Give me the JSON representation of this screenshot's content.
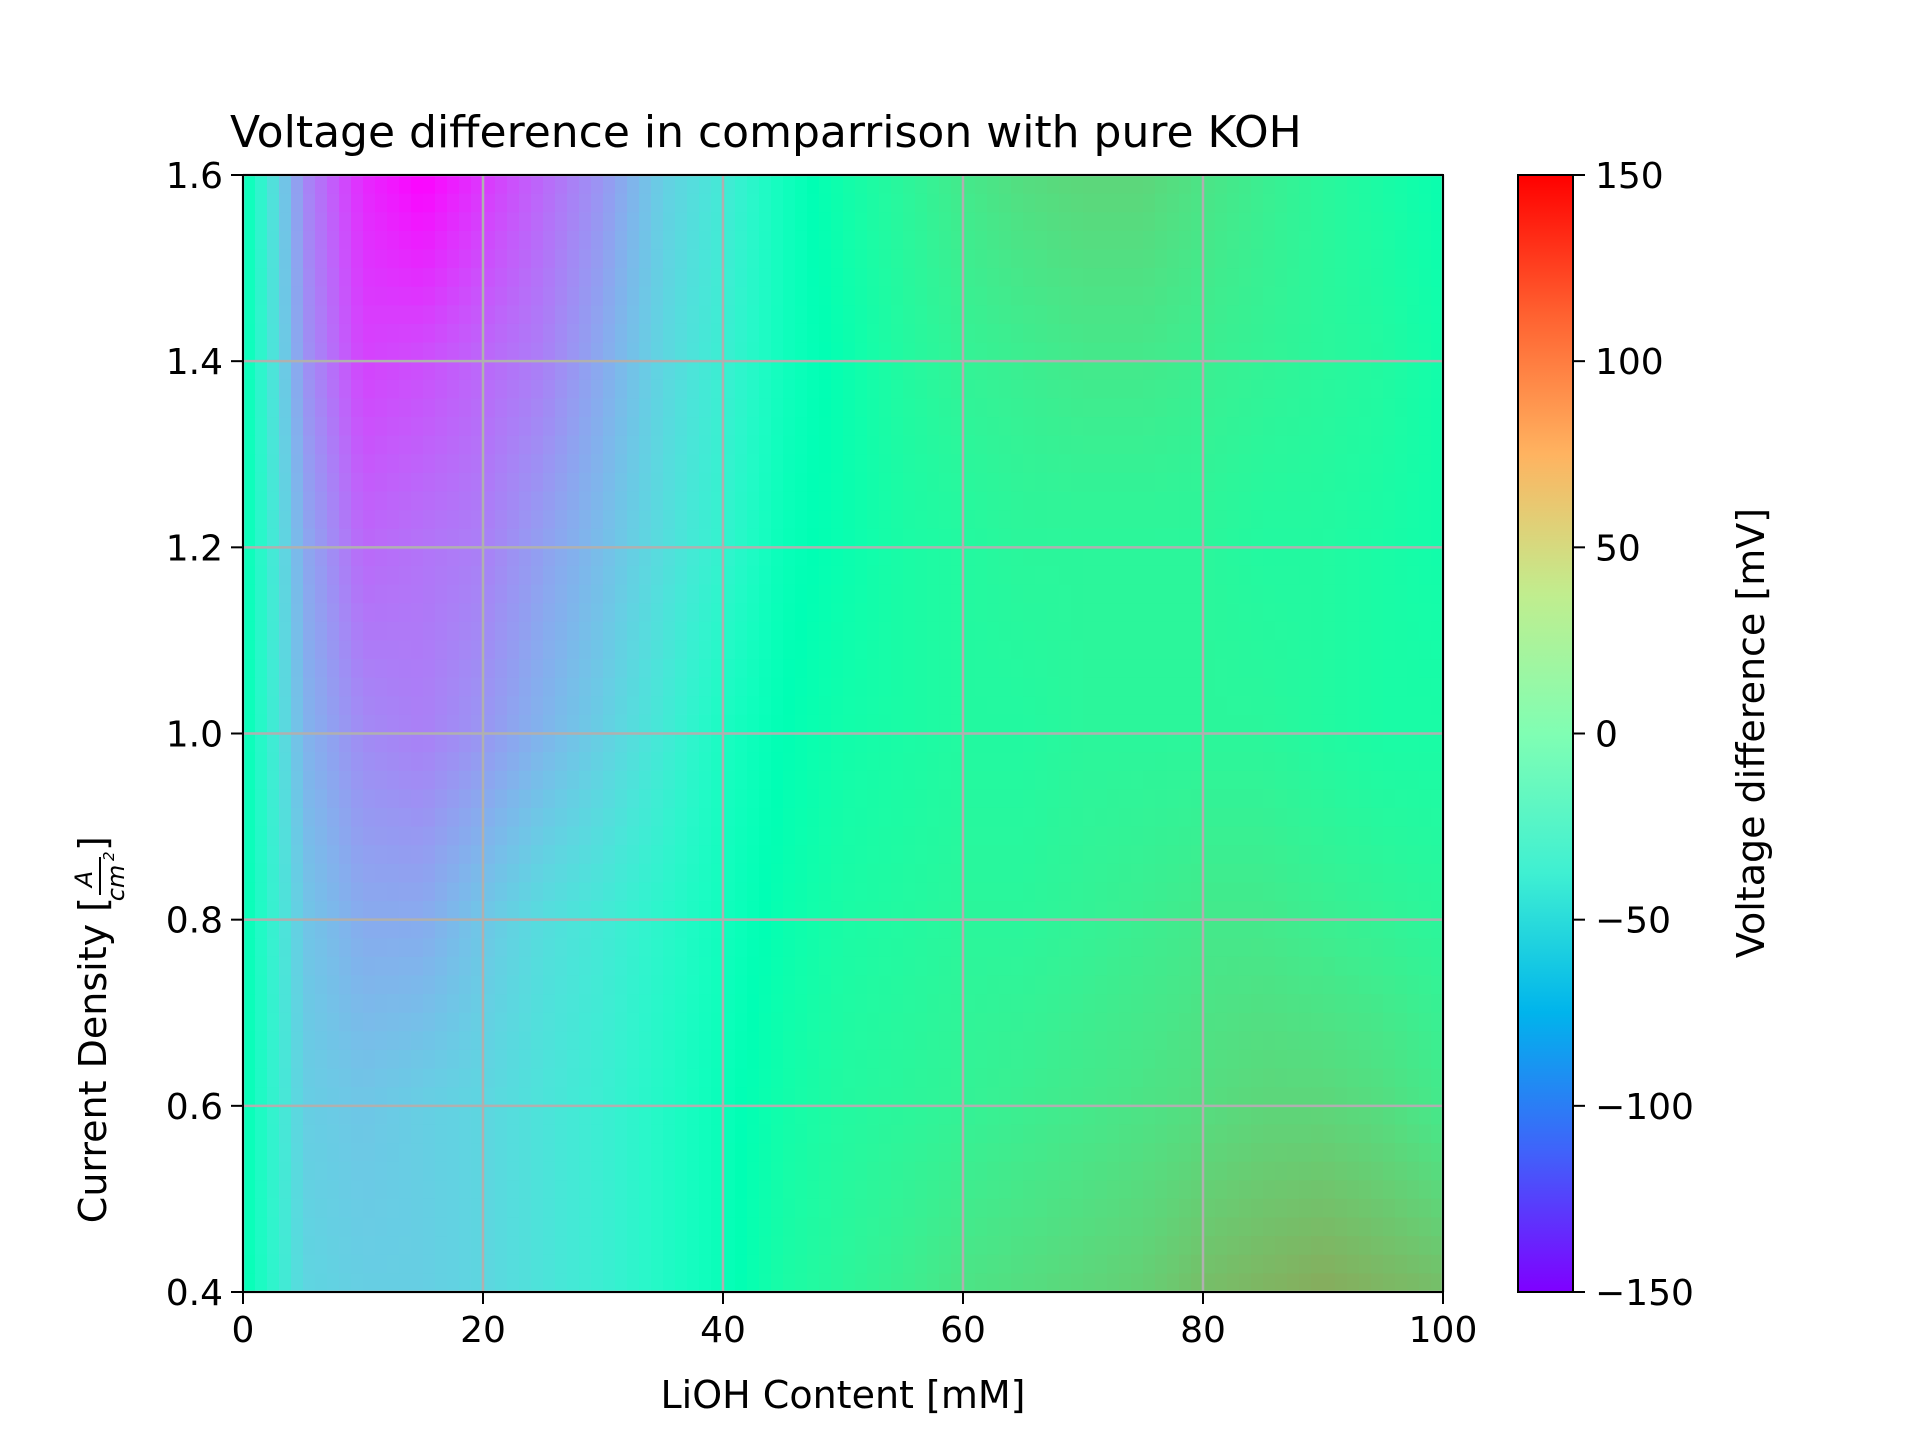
{
  "chart_data": {
    "type": "heatmap",
    "title": "Voltage difference in comparrison with pure KOH",
    "xlabel": "LiOH Content [mM]",
    "ylabel": {
      "prefix": "Current Density [",
      "numerator": "A",
      "denominator": "cm",
      "exponent": "2",
      "suffix": "]"
    },
    "colorbar_label": "Voltage difference [mV]",
    "xlim": [
      0,
      100
    ],
    "ylim": [
      0.4,
      1.6
    ],
    "clim": [
      -150,
      150
    ],
    "colormap": "rainbow",
    "grid": true,
    "x_ticks": [
      {
        "value": 0,
        "label": "0"
      },
      {
        "value": 20,
        "label": "20"
      },
      {
        "value": 40,
        "label": "40"
      },
      {
        "value": 60,
        "label": "60"
      },
      {
        "value": 80,
        "label": "80"
      },
      {
        "value": 100,
        "label": "100"
      }
    ],
    "y_ticks": [
      {
        "value": 0.4,
        "label": "0.4"
      },
      {
        "value": 0.6,
        "label": "0.6"
      },
      {
        "value": 0.8,
        "label": "0.8"
      },
      {
        "value": 1.0,
        "label": "1.0"
      },
      {
        "value": 1.2,
        "label": "1.2"
      },
      {
        "value": 1.4,
        "label": "1.4"
      },
      {
        "value": 1.6,
        "label": "1.6"
      }
    ],
    "colorbar_ticks": [
      {
        "value": 150,
        "label": "150"
      },
      {
        "value": 100,
        "label": "100"
      },
      {
        "value": 50,
        "label": "50"
      },
      {
        "value": 0,
        "label": "0"
      },
      {
        "value": -50,
        "label": "−50"
      },
      {
        "value": -100,
        "label": "−100"
      },
      {
        "value": -150,
        "label": "−150"
      }
    ],
    "x": [
      0,
      5,
      10,
      15,
      20,
      25,
      30,
      35,
      40,
      45,
      50,
      55,
      60,
      65,
      70,
      75,
      80,
      85,
      90,
      95,
      100
    ],
    "y": [
      0.4,
      0.6,
      0.8,
      1.0,
      1.2,
      1.4,
      1.6
    ],
    "z": [
      [
        0,
        -55,
        -60,
        -60,
        -55,
        -45,
        -35,
        -20,
        -5,
        15,
        25,
        35,
        45,
        50,
        55,
        60,
        70,
        75,
        80,
        75,
        70
      ],
      [
        0,
        -60,
        -65,
        -60,
        -55,
        -45,
        -35,
        -20,
        -5,
        10,
        20,
        25,
        30,
        35,
        40,
        45,
        50,
        55,
        55,
        50,
        40
      ],
      [
        0,
        -65,
        -80,
        -80,
        -65,
        -50,
        -40,
        -25,
        -10,
        5,
        15,
        20,
        25,
        25,
        30,
        35,
        40,
        40,
        35,
        30,
        25
      ],
      [
        0,
        -75,
        -95,
        -100,
        -90,
        -75,
        -60,
        -40,
        -15,
        0,
        10,
        15,
        20,
        20,
        25,
        25,
        25,
        25,
        20,
        15,
        15
      ],
      [
        0,
        -80,
        -110,
        -105,
        -100,
        -85,
        -70,
        -50,
        -30,
        -5,
        5,
        15,
        20,
        25,
        25,
        25,
        25,
        20,
        20,
        15,
        10
      ],
      [
        0,
        -90,
        -125,
        -120,
        -110,
        -100,
        -80,
        -55,
        -35,
        -10,
        5,
        20,
        30,
        35,
        40,
        40,
        35,
        30,
        25,
        20,
        10
      ],
      [
        0,
        -95,
        -135,
        -150,
        -130,
        -110,
        -90,
        -60,
        -40,
        -10,
        10,
        25,
        40,
        50,
        55,
        55,
        45,
        35,
        25,
        15,
        5
      ]
    ]
  }
}
